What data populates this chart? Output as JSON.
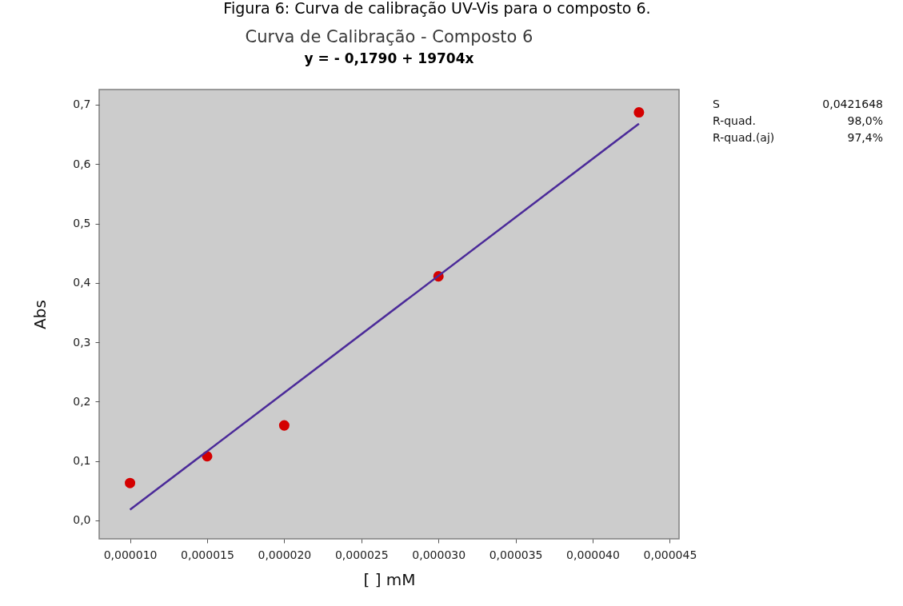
{
  "chart_data": {
    "type": "scatter",
    "title": "Curva de Calibração - Composto 6",
    "subtitle": "y = - 0,1790 + 19704x",
    "xlabel": "[ ] mM",
    "ylabel": "Abs",
    "annotations": [
      "Figura 6: Curva de calibração UV-Vis para o composto 6.",
      "S",
      "0,0421648",
      "R-quad.",
      "98,0%",
      "R-quad.(aj)",
      "97,4%"
    ],
    "series": [
      {
        "color": "#d40000",
        "marker": "circle",
        "x": [
          1e-05,
          1.5e-05,
          2e-05,
          3e-05,
          4.3e-05
        ],
        "values": [
          0.063,
          0.108,
          0.16,
          0.411,
          0.687
        ]
      },
      {
        "type": "line",
        "color": "#4b2a99",
        "line_style": "solid",
        "x": [
          1e-05,
          4.3e-05
        ],
        "values": [
          0.018,
          0.668
        ]
      }
    ],
    "xlim": [
      8e-06,
      4.56e-05
    ],
    "ylim": [
      -0.031,
      0.7255
    ],
    "xticks": [
      {
        "value": 1e-05,
        "label": "0,000010"
      },
      {
        "value": 1.5e-05,
        "label": "0,000015"
      },
      {
        "value": 2e-05,
        "label": "0,000020"
      },
      {
        "value": 2.5e-05,
        "label": "0,000025"
      },
      {
        "value": 3e-05,
        "label": "0,000030"
      },
      {
        "value": 3.5e-05,
        "label": "0,000035"
      },
      {
        "value": 4e-05,
        "label": "0,000040"
      },
      {
        "value": 4.5e-05,
        "label": "0,000045"
      }
    ],
    "yticks": [
      {
        "value": 0,
        "label": "0,0"
      },
      {
        "value": 0.1,
        "label": "0,1"
      },
      {
        "value": 0.2,
        "label": "0,2"
      },
      {
        "value": 0.3,
        "label": "0,3"
      },
      {
        "value": 0.4,
        "label": "0,4"
      },
      {
        "value": 0.5,
        "label": "0,5"
      },
      {
        "value": 0.6,
        "label": "0,6"
      },
      {
        "value": 0.7,
        "label": "0,7"
      }
    ],
    "grid": false
  }
}
